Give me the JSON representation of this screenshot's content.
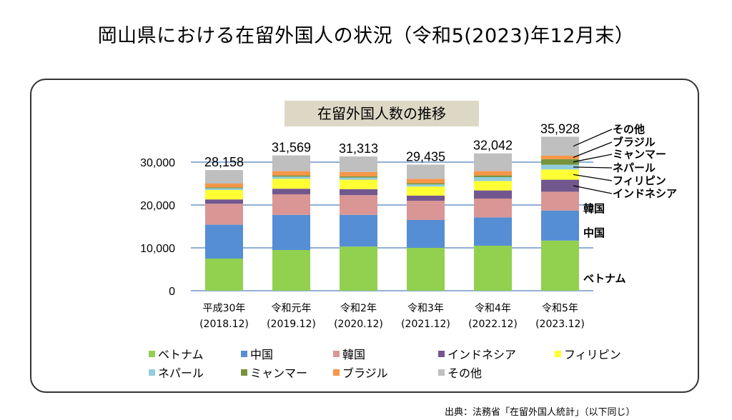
{
  "page": {
    "title": "岡山県における在留外国人の状況（令和5(2023)年12月末）",
    "source": "出典：法務省「在留外国人統計」（以下同じ）"
  },
  "chart_data": {
    "type": "bar",
    "stacked": true,
    "title": "在留外国人数の推移",
    "xlabel": "",
    "ylabel": "",
    "ylim": [
      0,
      30000
    ],
    "yticks": [
      0,
      10000,
      20000,
      30000
    ],
    "ytick_labels": [
      "0",
      "10,000",
      "20,000",
      "30,000"
    ],
    "grid": true,
    "legend_position": "bottom",
    "categories": [
      {
        "era": "平成30年",
        "date": "(2018.12)"
      },
      {
        "era": "令和元年",
        "date": "(2019.12)"
      },
      {
        "era": "令和2年",
        "date": "(2020.12)"
      },
      {
        "era": "令和3年",
        "date": "(2021.12)"
      },
      {
        "era": "令和4年",
        "date": "(2022.12)"
      },
      {
        "era": "令和5年",
        "date": "(2023.12)"
      }
    ],
    "totals": [
      28158,
      31569,
      31313,
      29435,
      32042,
      35928
    ],
    "total_labels": [
      "28,158",
      "31,569",
      "31,313",
      "29,435",
      "32,042",
      "35,928"
    ],
    "series": [
      {
        "name": "ベトナム",
        "color": "#92d050",
        "values": [
          7500,
          9500,
          10300,
          10000,
          10500,
          11700
        ]
      },
      {
        "name": "中国",
        "color": "#558ed5",
        "values": [
          7900,
          8200,
          7400,
          6500,
          6600,
          7000
        ]
      },
      {
        "name": "韓国",
        "color": "#d99694",
        "values": [
          4900,
          4800,
          4600,
          4500,
          4400,
          4400
        ]
      },
      {
        "name": "インドネシア",
        "color": "#72578f",
        "values": [
          1000,
          1300,
          1400,
          1200,
          1900,
          2800
        ]
      },
      {
        "name": "フィリピン",
        "color": "#ffff33",
        "values": [
          2200,
          2300,
          2200,
          2100,
          2200,
          2400
        ]
      },
      {
        "name": "ネパール",
        "color": "#93cddd",
        "values": [
          400,
          500,
          500,
          500,
          900,
          1100
        ]
      },
      {
        "name": "ミャンマー",
        "color": "#77933c",
        "values": [
          200,
          300,
          300,
          300,
          400,
          1300
        ]
      },
      {
        "name": "ブラジル",
        "color": "#f79646",
        "values": [
          900,
          1000,
          1000,
          1000,
          1000,
          800
        ]
      },
      {
        "name": "その他",
        "color": "#bfbfbf",
        "values": [
          3158,
          3669,
          3613,
          3335,
          4142,
          4428
        ]
      }
    ],
    "annotations": {
      "callouts": [
        "その他",
        "ブラジル",
        "ミャンマー",
        "ネパール",
        "フィリピン",
        "インドネシア"
      ],
      "inline": [
        "韓国",
        "中国",
        "ベトナム"
      ]
    }
  },
  "legend": {
    "rows": [
      [
        "ベトナム",
        "中国",
        "韓国",
        "インドネシア",
        "フィリピン"
      ],
      [
        "ネパール",
        "ミャンマー",
        "ブラジル",
        "その他"
      ]
    ]
  }
}
